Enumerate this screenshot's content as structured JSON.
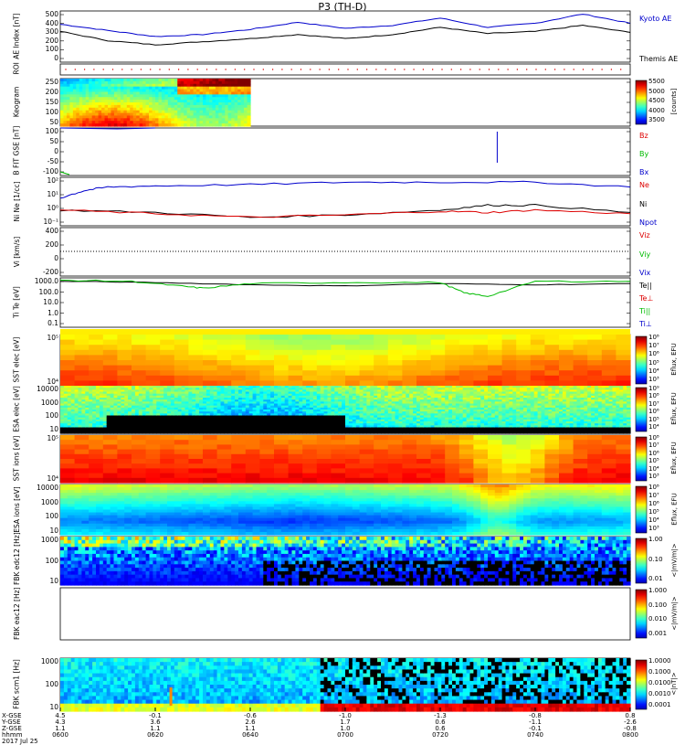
{
  "title": "P3 (TH-D)",
  "colors": {
    "blue": "#0000cc",
    "red": "#dd0000",
    "green": "#00bb00",
    "black": "#000000"
  },
  "panels": [
    {
      "id": "ae",
      "ylabel": [
        "AE Index",
        "[nT]"
      ],
      "ticks": [
        "500",
        "400",
        "300",
        "200",
        "100",
        "0"
      ],
      "legend": [
        {
          "text": "Kyoto AE",
          "color": "#0000cc"
        },
        {
          "text": "Themis AE",
          "color": "#000000"
        }
      ]
    },
    {
      "id": "roi",
      "ylabel": [
        "ROI"
      ],
      "ticks": [],
      "legend": []
    },
    {
      "id": "keogram",
      "ylabel": [
        "Keogram"
      ],
      "ticks": [
        "250",
        "200",
        "150",
        "100",
        "50"
      ],
      "colorbar": {
        "ticks": [
          "5500",
          "5000",
          "4500",
          "4000",
          "3500"
        ],
        "unit": "[counts]"
      },
      "legend": []
    },
    {
      "id": "bfgm",
      "ylabel": [
        "B FIT",
        "GSE",
        "[nT]"
      ],
      "ticks": [
        "100",
        "50",
        "0",
        "-50",
        "-100"
      ],
      "legend": [
        {
          "text": "Bz",
          "color": "#dd0000"
        },
        {
          "text": "By",
          "color": "#00bb00"
        },
        {
          "text": "Bx",
          "color": "#0000cc"
        }
      ]
    },
    {
      "id": "density",
      "ylabel": [
        "Ni",
        "Ne",
        "[1/cc]"
      ],
      "ticks": [
        "10²",
        "10¹",
        "10⁰",
        "10⁻¹"
      ],
      "legend": [
        {
          "text": "Ne",
          "color": "#dd0000"
        },
        {
          "text": "Ni",
          "color": "#000000"
        },
        {
          "text": "Npot",
          "color": "#0000cc"
        }
      ]
    },
    {
      "id": "velocity",
      "ylabel": [
        "Vi",
        "[km/s]"
      ],
      "ticks": [
        "400",
        "200",
        "0",
        "-200"
      ],
      "legend": [
        {
          "text": "Viz",
          "color": "#dd0000"
        },
        {
          "text": "Viy",
          "color": "#00bb00"
        },
        {
          "text": "Vix",
          "color": "#0000cc"
        }
      ]
    },
    {
      "id": "temp",
      "ylabel": [
        "Ti",
        "Te",
        "[eV]"
      ],
      "ticks": [
        "1000.0",
        "100.0",
        "10.0",
        "1.0",
        "0.1"
      ],
      "legend": [
        {
          "text": "Te||",
          "color": "#000000"
        },
        {
          "text": "Te⊥",
          "color": "#dd0000"
        },
        {
          "text": "Ti||",
          "color": "#00bb00"
        },
        {
          "text": "Ti⊥",
          "color": "#0000cc"
        }
      ]
    },
    {
      "id": "sst_e",
      "ylabel": [
        "SST",
        "elec",
        "[eV]"
      ],
      "ticks": [
        "10⁵",
        "10⁴"
      ],
      "colorbar": {
        "ticks": [
          "10⁸",
          "10⁷",
          "10⁶",
          "10⁵",
          "10⁴",
          "10³"
        ],
        "unit": "Eflux, EFU"
      },
      "legend": []
    },
    {
      "id": "esa_e",
      "ylabel": [
        "ESA",
        "elec",
        "[eV]"
      ],
      "ticks": [
        "10000",
        "1000",
        "100",
        "10"
      ],
      "colorbar": {
        "ticks": [
          "10⁹",
          "10⁸",
          "10⁷",
          "10⁶",
          "10⁵",
          "10⁴"
        ],
        "unit": "Eflux, EFU"
      },
      "legend": []
    },
    {
      "id": "sst_i",
      "ylabel": [
        "SST",
        "ions",
        "[eV]"
      ],
      "ticks": [
        "10⁵",
        "10⁴"
      ],
      "colorbar": {
        "ticks": [
          "10⁸",
          "10⁷",
          "10⁶",
          "10⁵",
          "10⁴",
          "10³"
        ],
        "unit": "Eflux, EFU"
      },
      "legend": []
    },
    {
      "id": "esa_i",
      "ylabel": [
        "ESA",
        "ions",
        "[eV]"
      ],
      "ticks": [
        "10000",
        "1000",
        "100",
        "10"
      ],
      "colorbar": {
        "ticks": [
          "10⁸",
          "10⁷",
          "10⁶",
          "10⁵",
          "10⁴",
          "10³"
        ],
        "unit": "Eflux, EFU"
      },
      "legend": []
    },
    {
      "id": "fbk_edc12",
      "ylabel": [
        "FBK",
        "edc12",
        "[Hz]"
      ],
      "ticks": [
        "1000",
        "100",
        "10"
      ],
      "colorbar": {
        "ticks": [
          "1.00",
          "0.10",
          "0.01"
        ],
        "unit": "<|mV/m|>"
      },
      "legend": []
    },
    {
      "id": "fbk_eac12",
      "ylabel": [
        "FBK",
        "eac12",
        "[Hz]"
      ],
      "ticks": [],
      "colorbar": {
        "ticks": [
          "1.000",
          "0.100",
          "0.010",
          "0.001"
        ],
        "unit": "<|mV/m|>"
      },
      "legend": []
    },
    {
      "id": "fbk_scm1",
      "ylabel": [
        "FBK",
        "scm1",
        "[Hz]"
      ],
      "ticks": [
        "1000",
        "100",
        "10"
      ],
      "colorbar": {
        "ticks": [
          "1.0000",
          "0.1000",
          "0.0100",
          "0.0010",
          "0.0001"
        ],
        "unit": "<|nT|>"
      },
      "legend": []
    }
  ],
  "footer": {
    "row_labels": [
      "X-GSE",
      "Y-GSE",
      "Z-GSE",
      "hhmm",
      "2017 Jul 25"
    ],
    "columns": [
      [
        "4.5",
        "4.3",
        "1.1",
        "0600"
      ],
      [
        "-0.1",
        "3.6",
        "1.1",
        "0620"
      ],
      [
        "-0.6",
        "2.6",
        "1.1",
        "0640"
      ],
      [
        "-1.0",
        "1.7",
        "1.0",
        "0700"
      ],
      [
        "-1.3",
        "0.6",
        "0.6",
        "0720"
      ],
      [
        "-0.8",
        "-1.1",
        "-0.1",
        "0740"
      ],
      [
        "0.8",
        "-2.6",
        "-0.8",
        "0800"
      ]
    ]
  },
  "chart_data": {
    "type": "line",
    "title": "P3 (TH-D)",
    "xlabel": "hhmm",
    "x_ticks": [
      "0600",
      "0620",
      "0640",
      "0700",
      "0720",
      "0740",
      "0800"
    ],
    "x_minutes": [
      0,
      20,
      40,
      60,
      80,
      100,
      120
    ],
    "ae_index": {
      "ylim": [
        0,
        500
      ],
      "series": [
        {
          "name": "Kyoto AE",
          "x": [
            0,
            10,
            20,
            30,
            40,
            50,
            60,
            70,
            80,
            90,
            100,
            110,
            120
          ],
          "values": [
            370,
            310,
            250,
            270,
            320,
            390,
            330,
            360,
            430,
            340,
            380,
            470,
            380
          ]
        },
        {
          "name": "Themis AE",
          "x": [
            0,
            10,
            20,
            30,
            40,
            50,
            60,
            70,
            80,
            90,
            100,
            110,
            120
          ],
          "values": [
            300,
            210,
            170,
            200,
            230,
            270,
            230,
            270,
            340,
            280,
            300,
            360,
            290
          ]
        }
      ]
    },
    "density_log10": {
      "ylim": [
        -1.5,
        2.5
      ],
      "series": [
        {
          "name": "Npot",
          "x": [
            0,
            5,
            10,
            20,
            40,
            60,
            80,
            100,
            120
          ],
          "values": [
            0.8,
            1.4,
            1.7,
            1.8,
            1.9,
            2.1,
            2.1,
            2.1,
            1.7
          ]
        },
        {
          "name": "Ni",
          "x": [
            0,
            20,
            40,
            60,
            80,
            90,
            100,
            120
          ],
          "values": [
            -0.2,
            -0.4,
            -0.8,
            -0.6,
            -0.2,
            0.2,
            0.2,
            -0.4
          ]
        },
        {
          "name": "Ne",
          "x": [
            0,
            20,
            40,
            60,
            80,
            90,
            100,
            120
          ],
          "values": [
            -0.2,
            -0.5,
            -0.8,
            -0.6,
            -0.3,
            -0.4,
            -0.2,
            -0.5
          ]
        }
      ]
    },
    "temperature_log10": {
      "ylim": [
        -1,
        3.3
      ],
      "series": [
        {
          "name": "Te||",
          "x": [
            0,
            20,
            40,
            60,
            80,
            100,
            120
          ],
          "values": [
            3.0,
            2.9,
            2.7,
            2.6,
            2.8,
            2.7,
            2.8
          ]
        },
        {
          "name": "Ti||",
          "x": [
            0,
            15,
            25,
            30,
            40,
            60,
            80,
            85,
            90,
            100,
            120
          ],
          "values": [
            3.1,
            3.0,
            2.6,
            2.4,
            2.8,
            2.9,
            2.9,
            2.0,
            1.7,
            3.0,
            3.0
          ]
        }
      ]
    }
  }
}
